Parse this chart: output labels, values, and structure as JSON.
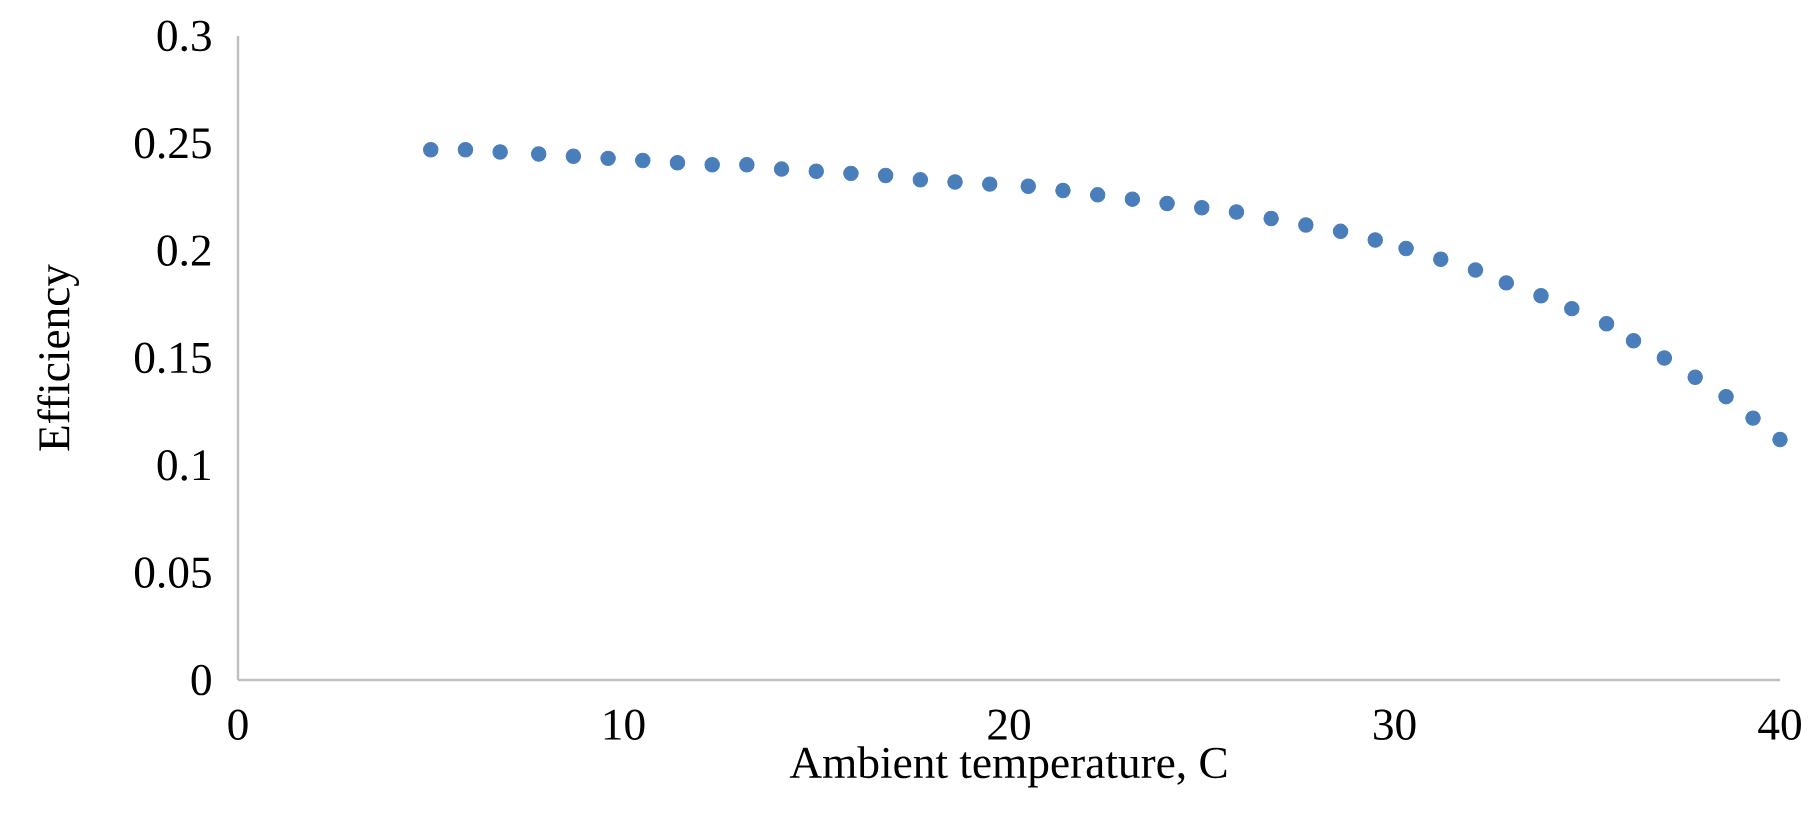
{
  "chart_data": {
    "type": "scatter",
    "xlabel": "Ambient temperature, C",
    "ylabel": "Efficiency",
    "xlim": [
      0,
      40
    ],
    "ylim": [
      0,
      0.3
    ],
    "xticks": [
      0,
      10,
      20,
      30,
      40
    ],
    "yticks": [
      0,
      0.05,
      0.1,
      0.15,
      0.2,
      0.25,
      0.3
    ],
    "grid": false,
    "series": [
      {
        "color": "#4a7ebb",
        "x": [
          5.0,
          5.9,
          6.8,
          7.8,
          8.7,
          9.6,
          10.5,
          11.4,
          12.3,
          13.2,
          14.1,
          15.0,
          15.9,
          16.8,
          17.7,
          18.6,
          19.5,
          20.5,
          21.4,
          22.3,
          23.2,
          24.1,
          25.0,
          25.9,
          26.8,
          27.7,
          28.6,
          29.5,
          30.3,
          31.2,
          32.1,
          32.9,
          33.8,
          34.6,
          35.5,
          36.2,
          37.0,
          37.8,
          38.6,
          39.3,
          40.0
        ],
        "values": [
          0.247,
          0.247,
          0.246,
          0.245,
          0.244,
          0.243,
          0.242,
          0.241,
          0.24,
          0.24,
          0.238,
          0.237,
          0.236,
          0.235,
          0.233,
          0.232,
          0.231,
          0.23,
          0.228,
          0.226,
          0.224,
          0.222,
          0.22,
          0.218,
          0.215,
          0.212,
          0.209,
          0.205,
          0.201,
          0.196,
          0.191,
          0.185,
          0.179,
          0.173,
          0.166,
          0.158,
          0.15,
          0.141,
          0.132,
          0.122,
          0.112
        ]
      }
    ]
  }
}
